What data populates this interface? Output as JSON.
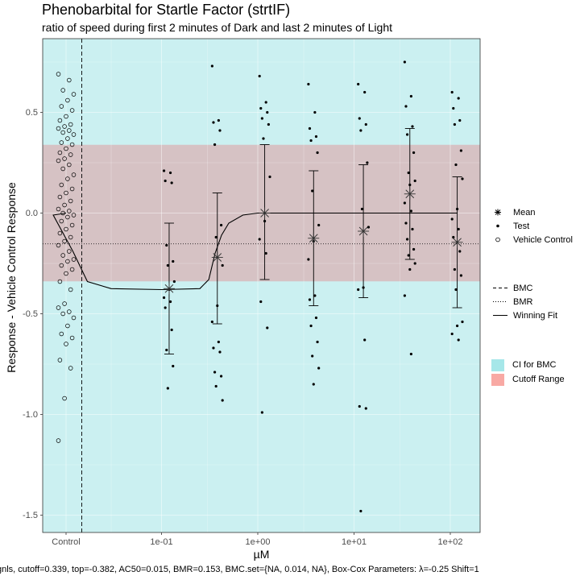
{
  "chart_data": {
    "type": "scatter",
    "title": "Phenobarbital for Startle Factor (strtIF)",
    "subtitle": "ratio of speed during first 2 minutes of Dark and last 2 minutes of Light",
    "xlabel": "µM",
    "ylabel": "Response - Vehicle Control Response",
    "x_scale": "log10",
    "x_ticks": [
      "Control",
      "1e-01",
      "1e+00",
      "1e+01",
      "1e+02"
    ],
    "y_ticks": [
      "0.5",
      "0.0",
      "-0.5",
      "-1.0",
      "-1.5"
    ],
    "ylim": [
      -1.58,
      0.87
    ],
    "grid": true,
    "caption": "gnls, cutoff=0.339, top=-0.382, AC50=0.015, BMR=0.153, BMC.set={NA, 0.014, NA}, Box-Cox Parameters: λ=-0.25 Shift=1",
    "cutoff_band": [
      -0.339,
      0.339
    ],
    "bmr_line": -0.153,
    "bmc_line": "Control",
    "colors": {
      "ci_fill": "#cbf0f1",
      "cutoff_fill": "#d6c2c4",
      "legend_ci": "#a6e7e9",
      "legend_cutoff": "#f8a9a4"
    },
    "vehicle_control": [
      0.69,
      0.66,
      0.61,
      0.59,
      0.56,
      0.53,
      0.51,
      0.48,
      0.46,
      0.44,
      0.43,
      0.42,
      0.41,
      0.4,
      0.39,
      0.37,
      0.35,
      0.34,
      0.32,
      0.3,
      0.29,
      0.27,
      0.26,
      0.24,
      0.22,
      0.19,
      0.17,
      0.14,
      0.12,
      0.1,
      0.08,
      0.06,
      0.04,
      0.02,
      0.01,
      0.0,
      -0.01,
      -0.02,
      -0.04,
      -0.06,
      -0.08,
      -0.1,
      -0.12,
      -0.14,
      -0.16,
      -0.19,
      -0.21,
      -0.23,
      -0.24,
      -0.26,
      -0.28,
      -0.3,
      -0.34,
      -0.38,
      -0.45,
      -0.47,
      -0.49,
      -0.5,
      -0.52,
      -0.56,
      -0.6,
      -0.62,
      -0.65,
      -0.73,
      -0.77,
      -0.92,
      -1.13
    ],
    "test_points": [
      {
        "conc": 0.12,
        "values": [
          0.21,
          0.2,
          0.16,
          0.15,
          -0.16,
          -0.24,
          -0.26,
          -0.34,
          -0.38,
          -0.42,
          -0.44,
          -0.47,
          -0.58,
          -0.68,
          -0.76,
          -0.87
        ]
      },
      {
        "conc": 0.38,
        "values": [
          0.73,
          0.46,
          0.45,
          0.41,
          0.34,
          -0.06,
          -0.12,
          -0.26,
          -0.46,
          -0.54,
          -0.64,
          -0.67,
          -0.69,
          -0.79,
          -0.81,
          -0.86,
          -0.93
        ]
      },
      {
        "conc": 1.18,
        "values": [
          0.68,
          0.55,
          0.52,
          0.5,
          0.47,
          0.44,
          0.37,
          0.18,
          -0.04,
          -0.13,
          -0.2,
          -0.44,
          -0.57,
          -0.99
        ]
      },
      {
        "conc": 3.8,
        "values": [
          0.64,
          0.5,
          0.42,
          0.38,
          0.36,
          0.3,
          0.11,
          -0.06,
          -0.14,
          -0.23,
          -0.41,
          -0.43,
          -0.52,
          -0.56,
          -0.64,
          -0.71,
          -0.77,
          -0.85
        ]
      },
      {
        "conc": 12.5,
        "values": [
          0.64,
          0.6,
          0.47,
          0.44,
          0.41,
          0.25,
          0.02,
          -0.07,
          -0.37,
          -0.38,
          -0.63,
          -0.96,
          -0.97,
          -1.48
        ]
      },
      {
        "conc": 38.0,
        "values": [
          0.75,
          0.58,
          0.53,
          0.43,
          0.39,
          0.3,
          0.2,
          0.16,
          0.14,
          0.05,
          0.01,
          -0.05,
          -0.08,
          -0.13,
          -0.18,
          -0.21,
          -0.25,
          -0.28,
          -0.41,
          -0.7
        ]
      },
      {
        "conc": 118.0,
        "values": [
          0.6,
          0.57,
          0.52,
          0.46,
          0.44,
          0.31,
          0.24,
          0.17,
          0.02,
          -0.03,
          -0.08,
          -0.12,
          -0.19,
          -0.28,
          -0.31,
          -0.38,
          -0.54,
          -0.56,
          -0.6,
          -0.63
        ]
      }
    ],
    "means": [
      {
        "conc": 0.12,
        "mean": -0.375,
        "lower": -0.7,
        "upper": -0.05
      },
      {
        "conc": 0.38,
        "mean": -0.22,
        "lower": -0.55,
        "upper": 0.1
      },
      {
        "conc": 1.18,
        "mean": 0.0,
        "lower": -0.33,
        "upper": 0.34
      },
      {
        "conc": 3.8,
        "mean": -0.125,
        "lower": -0.46,
        "upper": 0.21
      },
      {
        "conc": 12.5,
        "mean": -0.09,
        "lower": -0.42,
        "upper": 0.24
      },
      {
        "conc": 38.0,
        "mean": 0.095,
        "lower": -0.23,
        "upper": 0.42
      },
      {
        "conc": 118.0,
        "mean": -0.145,
        "lower": -0.47,
        "upper": 0.18
      }
    ],
    "winning_fit": {
      "control": 0.0,
      "points": [
        [
          0.0075,
          -0.01
        ],
        [
          0.012,
          -0.19
        ],
        [
          0.017,
          -0.34
        ],
        [
          0.03,
          -0.375
        ],
        [
          0.1,
          -0.38
        ],
        [
          0.25,
          -0.375
        ],
        [
          0.31,
          -0.33
        ],
        [
          0.36,
          -0.2
        ],
        [
          0.42,
          -0.11
        ],
        [
          0.5,
          -0.05
        ],
        [
          0.7,
          -0.01
        ],
        [
          1.0,
          0.0
        ],
        [
          118.0,
          0.0
        ]
      ]
    },
    "legend": {
      "shapes": [
        {
          "label": "Mean",
          "icon": "asterisk-icon"
        },
        {
          "label": "Test",
          "icon": "dot-icon"
        },
        {
          "label": "Vehicle Control",
          "icon": "circle-icon"
        }
      ],
      "lines": [
        {
          "label": "BMC",
          "icon": "dashed-line-icon"
        },
        {
          "label": "BMR",
          "icon": "dotted-line-icon"
        },
        {
          "label": "Winning Fit",
          "icon": "solid-line-icon"
        }
      ],
      "fills": [
        {
          "label": "CI for BMC",
          "icon": "cyan-swatch-icon"
        },
        {
          "label": "Cutoff Range",
          "icon": "red-swatch-icon"
        }
      ]
    }
  }
}
